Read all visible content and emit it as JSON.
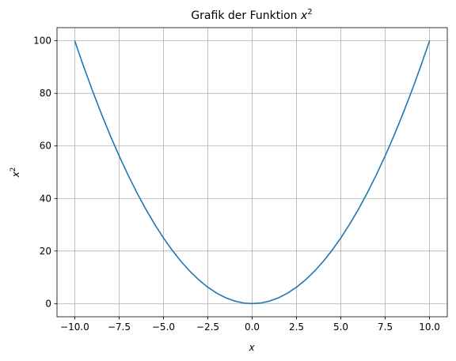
{
  "chart_data": {
    "type": "line",
    "title": "Grafik der Funktion x²",
    "title_base": "Grafik der Funktion ",
    "title_var": "x",
    "title_sup": "2",
    "xlabel": "x",
    "ylabel_var": "x",
    "ylabel_sup": "2",
    "xlim": [
      -11.0,
      11.0
    ],
    "ylim": [
      -5.0,
      105.0
    ],
    "grid": true,
    "xticks": [
      -10.0,
      -7.5,
      -5.0,
      -2.5,
      0.0,
      2.5,
      5.0,
      7.5,
      10.0
    ],
    "xtick_labels": [
      "−10.0",
      "−7.5",
      "−5.0",
      "−2.5",
      "0.0",
      "2.5",
      "5.0",
      "7.5",
      "10.0"
    ],
    "yticks": [
      0,
      20,
      40,
      60,
      80,
      100
    ],
    "ytick_labels": [
      "0",
      "20",
      "40",
      "60",
      "80",
      "100"
    ],
    "series": [
      {
        "color": "#1f77b4",
        "x": [
          -10,
          -9.5,
          -9,
          -8.5,
          -8,
          -7.5,
          -7,
          -6.5,
          -6,
          -5.5,
          -5,
          -4.5,
          -4,
          -3.5,
          -3,
          -2.5,
          -2,
          -1.5,
          -1,
          -0.5,
          0,
          0.5,
          1,
          1.5,
          2,
          2.5,
          3,
          3.5,
          4,
          4.5,
          5,
          5.5,
          6,
          6.5,
          7,
          7.5,
          8,
          8.5,
          9,
          9.5,
          10
        ],
        "y": [
          100,
          90.25,
          81,
          72.25,
          64,
          56.25,
          49,
          42.25,
          36,
          30.25,
          25,
          20.25,
          16,
          12.25,
          9,
          6.25,
          4,
          2.25,
          1,
          0.25,
          0,
          0.25,
          1,
          2.25,
          4,
          6.25,
          9,
          12.25,
          16,
          20.25,
          25,
          30.25,
          36,
          42.25,
          49,
          56.25,
          64,
          72.25,
          81,
          90.25,
          100
        ]
      }
    ]
  }
}
